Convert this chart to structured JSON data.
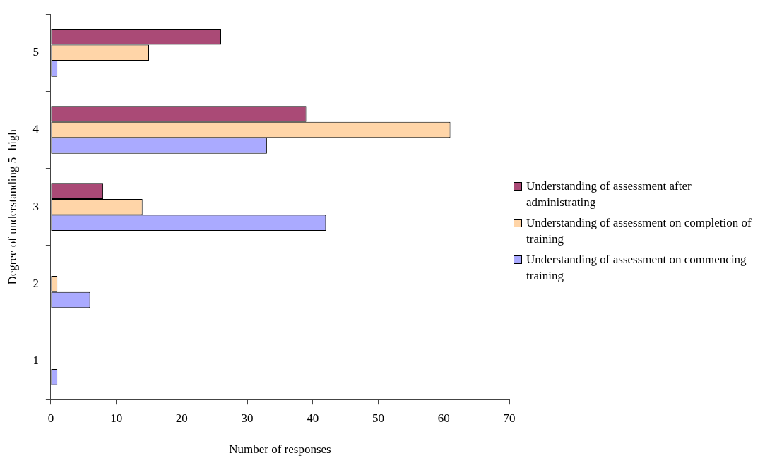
{
  "chart_data": {
    "type": "bar",
    "orientation": "horizontal",
    "xlabel": "Number of responses",
    "ylabel": "Degree of understanding 5=high",
    "categories": [
      "5",
      "4",
      "3",
      "2",
      "1"
    ],
    "series": [
      {
        "name": "Understanding of assessment after administrating",
        "color": "#aa4a76",
        "values": [
          26,
          39,
          8,
          null,
          null
        ]
      },
      {
        "name": "Understanding of assessment on completion of training",
        "color": "#ffd5a8",
        "values": [
          15,
          61,
          14,
          1,
          null
        ]
      },
      {
        "name": "Understanding of assessment on commencing training",
        "color": "#aaaaff",
        "values": [
          1,
          33,
          42,
          6,
          1
        ]
      }
    ],
    "xlim": [
      0,
      70
    ],
    "xticks": [
      0,
      10,
      20,
      30,
      40,
      50,
      60,
      70
    ],
    "grid": false,
    "legend": "right"
  }
}
